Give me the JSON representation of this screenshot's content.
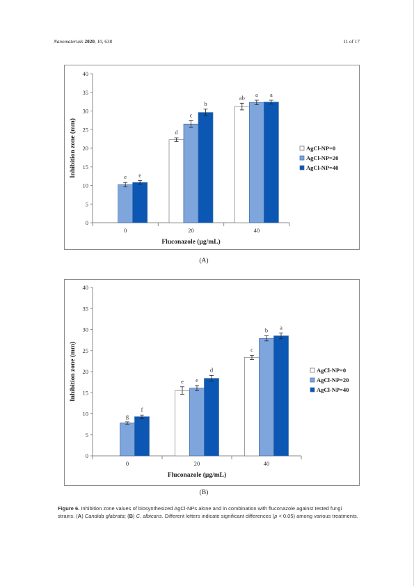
{
  "header": {
    "journal": "Nanomaterials",
    "year": "2020",
    "volume": "10",
    "article": "638",
    "page": "11 of 17"
  },
  "colors": {
    "series1": "#ffffff",
    "series2": "#7ea6dc",
    "series3": "#0b57b3"
  },
  "panels": [
    "(A)",
    "(B)"
  ],
  "chart_data": [
    {
      "type": "bar",
      "categories": [
        "0",
        "20",
        "40"
      ],
      "xlabel": "Fluconazole (µg/mL)",
      "ylabel": "Inhibition zone (mm)",
      "ylim": [
        0,
        40
      ],
      "yticks": [
        "0",
        "5",
        "10",
        "15",
        "20",
        "25",
        "30",
        "35",
        "40"
      ],
      "legend_position": "right",
      "series": [
        {
          "name": "AgCl-NP=0",
          "values": [
            null,
            22.3,
            31.2
          ],
          "errors": [
            null,
            0.5,
            0.9
          ],
          "letters": [
            null,
            "d",
            "ab"
          ]
        },
        {
          "name": "AgCl-NP=20",
          "values": [
            10.2,
            26.5,
            32.3
          ],
          "errors": [
            0.6,
            0.9,
            0.6
          ],
          "letters": [
            "e",
            "c",
            "a"
          ]
        },
        {
          "name": "AgCl-NP=40",
          "values": [
            10.8,
            29.6,
            32.4
          ],
          "errors": [
            0.5,
            0.9,
            0.5
          ],
          "letters": [
            "e",
            "b",
            "a"
          ]
        }
      ]
    },
    {
      "type": "bar",
      "categories": [
        "0",
        "20",
        "40"
      ],
      "xlabel": "Fluconazole (µg/mL)",
      "ylabel": "Inhibition zone (mm)",
      "ylim": [
        0,
        40
      ],
      "yticks": [
        "0",
        "5",
        "10",
        "15",
        "20",
        "25",
        "30",
        "35",
        "40"
      ],
      "legend_position": "right",
      "series": [
        {
          "name": "AgCl-NP=0",
          "values": [
            null,
            15.5,
            23.4
          ],
          "errors": [
            null,
            0.9,
            0.5
          ],
          "letters": [
            null,
            "e",
            "c"
          ]
        },
        {
          "name": "AgCl-NP=20",
          "values": [
            7.8,
            16.1,
            27.9
          ],
          "errors": [
            0.3,
            0.6,
            0.6
          ],
          "letters": [
            "g",
            "e",
            "b"
          ]
        },
        {
          "name": "AgCl-NP=40",
          "values": [
            9.3,
            18.4,
            28.5
          ],
          "errors": [
            0.4,
            0.7,
            0.7
          ],
          "letters": [
            "f",
            "d",
            "a"
          ]
        }
      ]
    }
  ],
  "caption": {
    "label": "Figure 6.",
    "text1": " Inhibition zone values of biosynthesized AgCl-NPs alone and in combination with fluconazole against tested fungi strains. (",
    "a": "A",
    "sepA": ") ",
    "species1": "Candida glabrata",
    "text2": "; (",
    "b": "B",
    "sepB": ") ",
    "species2": "C. albicans",
    "text3": ". Different letters indicate significant differences (",
    "p": "p",
    "text4": " < 0.05) among various treatments."
  }
}
